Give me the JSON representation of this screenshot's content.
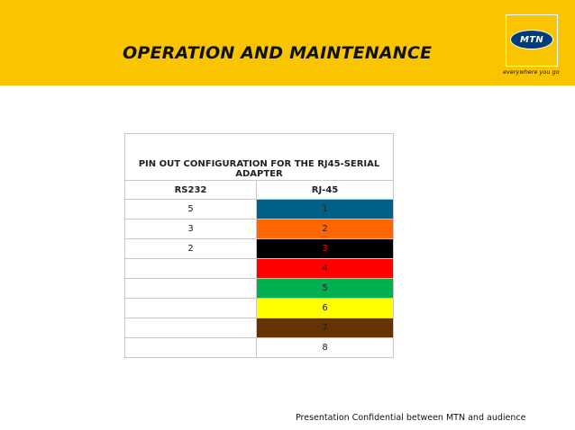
{
  "header": {
    "title": "OPERATION AND MAINTENANCE",
    "logo_text": "MTN",
    "tagline": "everywhere you go",
    "background_color": "#f9c400"
  },
  "table": {
    "caption": "PIN OUT CONFIGURATION FOR THE RJ45-SERIAL ADAPTER",
    "columns": [
      "RS232",
      "RJ-45"
    ],
    "rows": [
      {
        "rs232": "5",
        "rj45": "1",
        "color": "#006088",
        "text_color": "#222222"
      },
      {
        "rs232": "3",
        "rj45": "2",
        "color": "#ff6600",
        "text_color": "#222222"
      },
      {
        "rs232": "2",
        "rj45": "3",
        "color": "#000000",
        "text_color": "#ff0000"
      },
      {
        "rs232": "",
        "rj45": "4",
        "color": "#ff0000",
        "text_color": "#222222"
      },
      {
        "rs232": "",
        "rj45": "5",
        "color": "#00b050",
        "text_color": "#222222"
      },
      {
        "rs232": "",
        "rj45": "6",
        "color": "#ffff00",
        "text_color": "#222222"
      },
      {
        "rs232": "",
        "rj45": "7",
        "color": "#663300",
        "text_color": "#222222"
      },
      {
        "rs232": "",
        "rj45": "8",
        "color": "#ffffff",
        "text_color": "#222222"
      }
    ]
  },
  "footer": {
    "note": "Presentation Confidential between MTN and audience"
  }
}
